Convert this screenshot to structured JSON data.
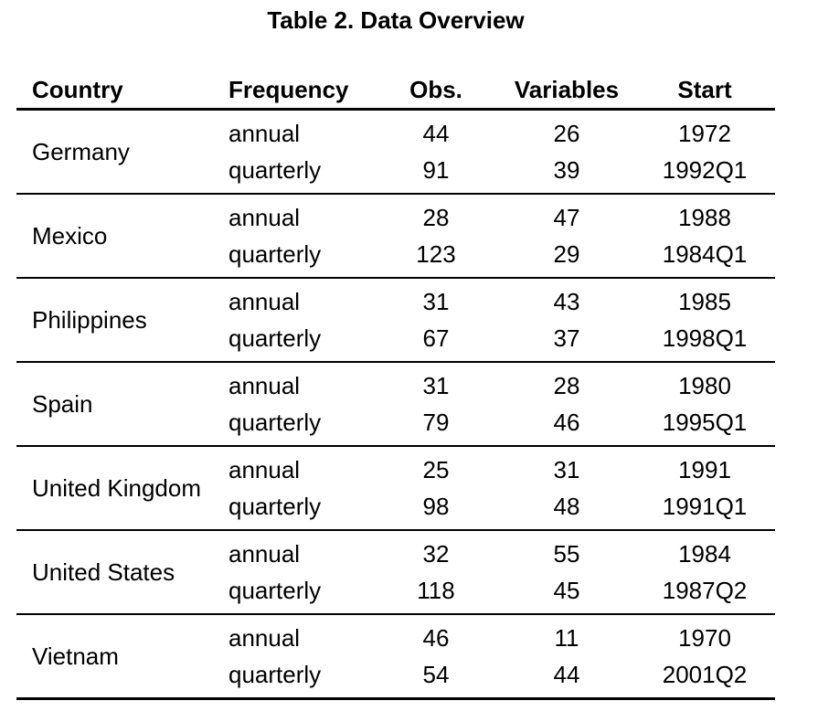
{
  "title": "Table 2. Data Overview",
  "table": {
    "headers": {
      "country": "Country",
      "frequency": "Frequency",
      "obs": "Obs.",
      "variables": "Variables",
      "start": "Start"
    },
    "groups": [
      {
        "country": "Germany",
        "rows": [
          {
            "frequency": "annual",
            "obs": "44",
            "variables": "26",
            "start": "1972"
          },
          {
            "frequency": "quarterly",
            "obs": "91",
            "variables": "39",
            "start": "1992Q1"
          }
        ]
      },
      {
        "country": "Mexico",
        "rows": [
          {
            "frequency": "annual",
            "obs": "28",
            "variables": "47",
            "start": "1988"
          },
          {
            "frequency": "quarterly",
            "obs": "123",
            "variables": "29",
            "start": "1984Q1"
          }
        ]
      },
      {
        "country": "Philippines",
        "rows": [
          {
            "frequency": "annual",
            "obs": "31",
            "variables": "43",
            "start": "1985"
          },
          {
            "frequency": "quarterly",
            "obs": "67",
            "variables": "37",
            "start": "1998Q1"
          }
        ]
      },
      {
        "country": "Spain",
        "rows": [
          {
            "frequency": "annual",
            "obs": "31",
            "variables": "28",
            "start": "1980"
          },
          {
            "frequency": "quarterly",
            "obs": "79",
            "variables": "46",
            "start": "1995Q1"
          }
        ]
      },
      {
        "country": "United Kingdom",
        "rows": [
          {
            "frequency": "annual",
            "obs": "25",
            "variables": "31",
            "start": "1991"
          },
          {
            "frequency": "quarterly",
            "obs": "98",
            "variables": "48",
            "start": "1991Q1"
          }
        ]
      },
      {
        "country": "United States",
        "rows": [
          {
            "frequency": "annual",
            "obs": "32",
            "variables": "55",
            "start": "1984"
          },
          {
            "frequency": "quarterly",
            "obs": "118",
            "variables": "45",
            "start": "1987Q2"
          }
        ]
      },
      {
        "country": "Vietnam",
        "rows": [
          {
            "frequency": "annual",
            "obs": "46",
            "variables": "11",
            "start": "1970"
          },
          {
            "frequency": "quarterly",
            "obs": "54",
            "variables": "44",
            "start": "2001Q2"
          }
        ]
      }
    ]
  }
}
